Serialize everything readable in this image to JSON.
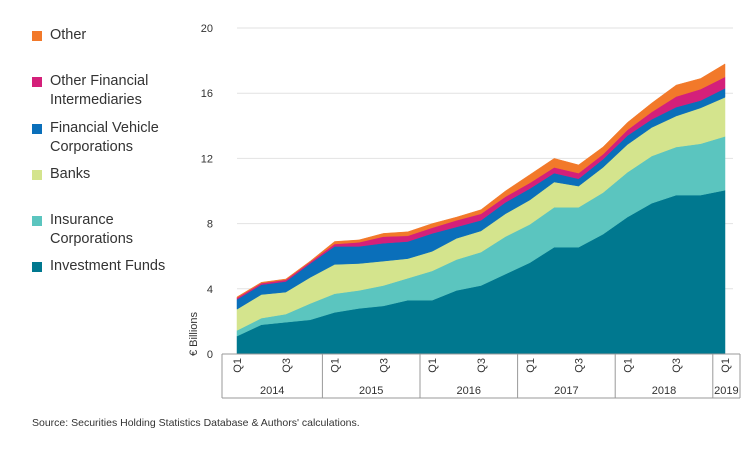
{
  "chart_data": {
    "type": "area",
    "stacked": true,
    "ylabel": "€ Billions",
    "ylim": [
      0,
      20
    ],
    "yticks": [
      0,
      4,
      8,
      12,
      16,
      20
    ],
    "quarters": [
      "2014Q1",
      "2014Q2",
      "2014Q3",
      "2014Q4",
      "2015Q1",
      "2015Q2",
      "2015Q3",
      "2015Q4",
      "2016Q1",
      "2016Q2",
      "2016Q3",
      "2016Q4",
      "2017Q1",
      "2017Q2",
      "2017Q3",
      "2017Q4",
      "2018Q1",
      "2018Q2",
      "2018Q3",
      "2018Q4",
      "2019Q1"
    ],
    "x_tick_labels": [
      {
        "index": 0,
        "label": "Q1"
      },
      {
        "index": 2,
        "label": "Q3"
      },
      {
        "index": 4,
        "label": "Q1"
      },
      {
        "index": 6,
        "label": "Q3"
      },
      {
        "index": 8,
        "label": "Q1"
      },
      {
        "index": 10,
        "label": "Q3"
      },
      {
        "index": 12,
        "label": "Q1"
      },
      {
        "index": 14,
        "label": "Q3"
      },
      {
        "index": 16,
        "label": "Q1"
      },
      {
        "index": 18,
        "label": "Q3"
      },
      {
        "index": 20,
        "label": "Q1"
      }
    ],
    "years": [
      {
        "label": "2014",
        "start": 0,
        "end": 3
      },
      {
        "label": "2015",
        "start": 4,
        "end": 7
      },
      {
        "label": "2016",
        "start": 8,
        "end": 11
      },
      {
        "label": "2017",
        "start": 12,
        "end": 15
      },
      {
        "label": "2018",
        "start": 16,
        "end": 19
      },
      {
        "label": "2019",
        "start": 20,
        "end": 20
      }
    ],
    "series": [
      {
        "name": "Investment Funds",
        "color": "#00788f",
        "values": [
          1.1,
          1.8,
          1.95,
          2.1,
          2.55,
          2.8,
          2.95,
          3.3,
          3.3,
          3.9,
          4.2,
          4.9,
          5.6,
          6.55,
          6.55,
          7.35,
          8.4,
          9.25,
          9.75,
          9.75,
          10.05
        ]
      },
      {
        "name": "Insurance Corporations",
        "color": "#5bc5bf",
        "values": [
          0.35,
          0.4,
          0.5,
          1.0,
          1.15,
          1.1,
          1.25,
          1.35,
          1.8,
          1.9,
          2.05,
          2.3,
          2.35,
          2.45,
          2.45,
          2.55,
          2.75,
          2.9,
          2.95,
          3.15,
          3.3
        ]
      },
      {
        "name": "Banks",
        "color": "#d4e48d",
        "values": [
          1.3,
          1.45,
          1.35,
          1.6,
          1.8,
          1.65,
          1.5,
          1.2,
          1.2,
          1.3,
          1.3,
          1.4,
          1.5,
          1.55,
          1.3,
          1.55,
          1.7,
          1.75,
          1.9,
          2.2,
          2.4
        ]
      },
      {
        "name": "Financial Vehicle Corporations",
        "color": "#0a6fba",
        "values": [
          0.6,
          0.6,
          0.65,
          0.85,
          1.1,
          1.05,
          1.1,
          1.05,
          1.1,
          0.7,
          0.65,
          0.7,
          0.7,
          0.55,
          0.45,
          0.5,
          0.55,
          0.5,
          0.55,
          0.45,
          0.55
        ]
      },
      {
        "name": "Other Financial Intermediaries",
        "color": "#d4207a",
        "values": [
          0.1,
          0.1,
          0.1,
          0.1,
          0.15,
          0.25,
          0.4,
          0.35,
          0.35,
          0.4,
          0.4,
          0.35,
          0.35,
          0.35,
          0.35,
          0.3,
          0.35,
          0.45,
          0.65,
          0.7,
          0.7
        ]
      },
      {
        "name": "Other",
        "color": "#f2792a",
        "values": [
          0.05,
          0.05,
          0.05,
          0.05,
          0.15,
          0.15,
          0.2,
          0.25,
          0.25,
          0.2,
          0.25,
          0.35,
          0.5,
          0.55,
          0.5,
          0.45,
          0.45,
          0.55,
          0.7,
          0.65,
          0.8
        ]
      }
    ]
  },
  "legend": {
    "items": [
      {
        "label": "Other",
        "color": "#f2792a"
      },
      {
        "label": "Other Financial\nIntermediaries",
        "color": "#d4207a"
      },
      {
        "label": "Financial Vehicle\nCorporations",
        "color": "#0a6fba"
      },
      {
        "label": "Banks",
        "color": "#d4e48d"
      },
      {
        "label": "Insurance\nCorporations",
        "color": "#5bc5bf"
      },
      {
        "label": "Investment Funds",
        "color": "#00788f"
      }
    ]
  },
  "source": "Source: Securities Holding Statistics Database & Authors' calculations."
}
